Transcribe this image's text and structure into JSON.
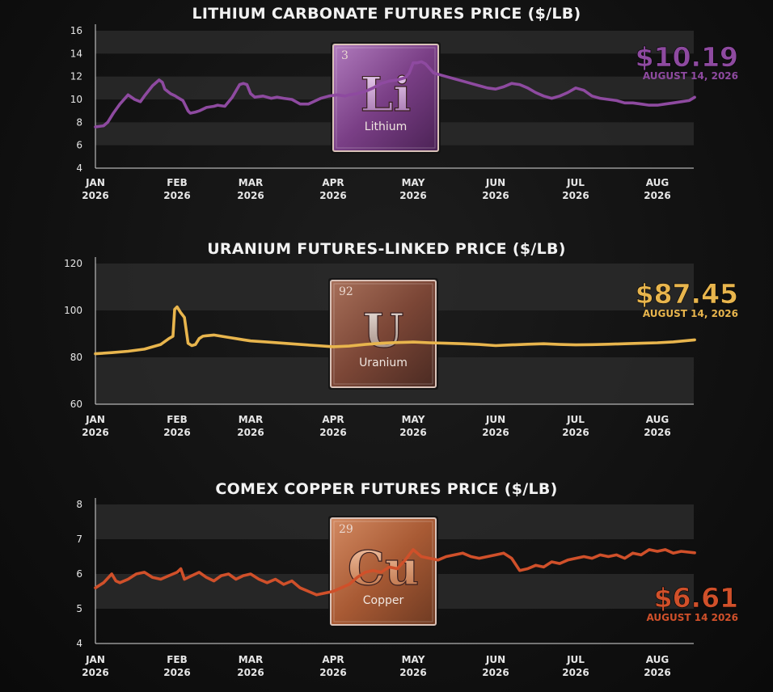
{
  "x_ticks": [
    "JAN 2026",
    "FEB 2026",
    "MAR 2026",
    "APR 2026",
    "MAY 2026",
    "JUN 2026",
    "JUL 2026",
    "AUG 2026"
  ],
  "chart_data": [
    {
      "type": "line",
      "title": "LITHIUM CARBONATE FUTURES PRICE ($/LB)",
      "ylim": [
        4,
        16
      ],
      "yticks": [
        4,
        6,
        8,
        10,
        12,
        14,
        16
      ],
      "grid": "alternating horizontal bands",
      "color": "#8e4aa0",
      "callout": {
        "value": "$10.19",
        "date": "AUGUST 14, 2026",
        "color": "#8e4aa0"
      },
      "element": {
        "number": "3",
        "symbol": "Li",
        "name": "Lithium"
      },
      "series": [
        {
          "x": [
            0.0,
            0.1,
            0.15,
            0.22,
            0.3,
            0.4,
            0.48,
            0.55,
            0.6,
            0.7,
            0.78,
            0.82,
            0.85,
            0.92,
            0.98,
            1.0,
            1.08,
            1.15,
            1.18,
            1.25,
            1.3,
            1.4,
            1.5,
            1.55,
            1.65,
            1.75,
            1.85,
            1.9,
            1.95,
            2.0,
            2.05,
            2.15,
            2.25,
            2.32,
            2.4,
            2.5,
            2.55,
            2.6,
            2.7,
            2.85,
            2.95,
            3.05,
            3.15,
            3.2,
            3.3,
            3.4,
            3.5,
            3.6,
            3.7,
            3.8,
            3.9,
            3.95,
            4.0,
            4.05,
            4.1,
            4.15,
            4.2,
            4.25,
            4.3,
            4.4,
            4.5,
            4.6,
            4.7,
            4.8,
            4.9,
            5.0,
            5.1,
            5.2,
            5.3,
            5.4,
            5.5,
            5.6,
            5.7,
            5.8,
            5.9,
            6.0,
            6.1,
            6.2,
            6.3,
            6.4,
            6.5,
            6.6,
            6.7,
            6.8,
            6.9,
            7.0,
            7.1,
            7.2,
            7.3,
            7.4,
            7.47
          ],
          "y": [
            7.6,
            7.7,
            8.0,
            8.8,
            9.6,
            10.4,
            10.0,
            9.8,
            10.3,
            11.2,
            11.7,
            11.5,
            10.9,
            10.5,
            10.3,
            10.2,
            9.9,
            9.0,
            8.8,
            8.9,
            9.0,
            9.3,
            9.4,
            9.5,
            9.4,
            10.2,
            11.3,
            11.4,
            11.3,
            10.5,
            10.2,
            10.3,
            10.1,
            10.2,
            10.1,
            10.0,
            9.8,
            9.6,
            9.6,
            10.1,
            10.3,
            10.4,
            10.3,
            10.4,
            10.5,
            10.7,
            11.0,
            11.4,
            11.6,
            11.7,
            11.9,
            12.3,
            13.2,
            13.2,
            13.3,
            13.1,
            12.7,
            12.3,
            12.2,
            12.0,
            11.8,
            11.6,
            11.4,
            11.2,
            11.0,
            10.9,
            11.1,
            11.4,
            11.3,
            11.0,
            10.6,
            10.3,
            10.1,
            10.3,
            10.6,
            11.0,
            10.8,
            10.3,
            10.1,
            10.0,
            9.9,
            9.7,
            9.7,
            9.6,
            9.5,
            9.5,
            9.6,
            9.7,
            9.8,
            9.9,
            10.19
          ]
        }
      ]
    },
    {
      "type": "line",
      "title": "URANIUM FUTURES-LINKED PRICE ($/LB)",
      "ylim": [
        60,
        120
      ],
      "yticks": [
        60,
        80,
        100,
        120
      ],
      "grid": "alternating horizontal bands",
      "color": "#e8b54d",
      "callout": {
        "value": "$87.45",
        "date": "AUGUST 14, 2026",
        "color": "#e8b54d"
      },
      "element": {
        "number": "92",
        "symbol": "U",
        "name": "Uranium"
      },
      "series": [
        {
          "x": [
            0.0,
            0.2,
            0.4,
            0.6,
            0.8,
            0.9,
            0.95,
            0.97,
            1.0,
            1.05,
            1.1,
            1.15,
            1.2,
            1.25,
            1.3,
            1.35,
            1.4,
            1.5,
            1.6,
            1.7,
            1.8,
            1.9,
            2.0,
            2.2,
            2.4,
            2.6,
            2.8,
            3.0,
            3.2,
            3.4,
            3.6,
            3.8,
            4.0,
            4.2,
            4.4,
            4.6,
            4.8,
            5.0,
            5.2,
            5.4,
            5.6,
            5.8,
            6.0,
            6.2,
            6.4,
            6.6,
            6.8,
            7.0,
            7.2,
            7.47
          ],
          "y": [
            81.5,
            82.0,
            82.6,
            83.5,
            85.5,
            88.0,
            89.0,
            100.5,
            101.5,
            99.0,
            97.0,
            86.0,
            85.0,
            85.5,
            88.0,
            89.0,
            89.2,
            89.5,
            89.0,
            88.5,
            88.0,
            87.5,
            87.0,
            86.5,
            86.0,
            85.5,
            85.0,
            84.5,
            84.8,
            85.5,
            86.0,
            86.3,
            86.5,
            86.2,
            86.0,
            85.8,
            85.5,
            85.0,
            85.3,
            85.6,
            85.8,
            85.5,
            85.3,
            85.4,
            85.6,
            85.8,
            86.0,
            86.2,
            86.6,
            87.45
          ]
        }
      ]
    },
    {
      "type": "line",
      "title": "COMEX COPPER FUTURES PRICE ($/LB)",
      "ylim": [
        4,
        8
      ],
      "yticks": [
        4,
        5,
        6,
        7,
        8
      ],
      "grid": "alternating horizontal bands",
      "color": "#d0502a",
      "callout": {
        "value": "$6.61",
        "date": "AUGUST 14 2026",
        "color": "#d0502a"
      },
      "element": {
        "number": "29",
        "symbol": "Cu",
        "name": "Copper"
      },
      "series": [
        {
          "x": [
            0.0,
            0.1,
            0.2,
            0.25,
            0.3,
            0.4,
            0.5,
            0.6,
            0.7,
            0.8,
            0.9,
            1.0,
            1.05,
            1.1,
            1.2,
            1.3,
            1.4,
            1.5,
            1.6,
            1.7,
            1.8,
            1.9,
            2.0,
            2.1,
            2.2,
            2.3,
            2.4,
            2.5,
            2.6,
            2.7,
            2.8,
            2.9,
            3.0,
            3.1,
            3.2,
            3.3,
            3.4,
            3.5,
            3.6,
            3.7,
            3.8,
            3.9,
            4.0,
            4.1,
            4.2,
            4.3,
            4.4,
            4.5,
            4.6,
            4.7,
            4.8,
            4.9,
            5.0,
            5.1,
            5.2,
            5.3,
            5.4,
            5.5,
            5.6,
            5.7,
            5.8,
            5.9,
            6.0,
            6.1,
            6.2,
            6.3,
            6.4,
            6.5,
            6.6,
            6.7,
            6.8,
            6.9,
            7.0,
            7.1,
            7.2,
            7.3,
            7.47
          ],
          "y": [
            5.6,
            5.75,
            6.0,
            5.8,
            5.75,
            5.85,
            6.0,
            6.05,
            5.9,
            5.85,
            5.95,
            6.05,
            6.15,
            5.85,
            5.95,
            6.05,
            5.9,
            5.8,
            5.95,
            6.0,
            5.85,
            5.95,
            6.0,
            5.85,
            5.75,
            5.85,
            5.7,
            5.8,
            5.6,
            5.5,
            5.4,
            5.45,
            5.5,
            5.6,
            5.7,
            5.9,
            6.05,
            6.1,
            6.05,
            6.2,
            6.15,
            6.4,
            6.7,
            6.5,
            6.45,
            6.4,
            6.5,
            6.55,
            6.6,
            6.5,
            6.45,
            6.5,
            6.55,
            6.6,
            6.45,
            6.1,
            6.15,
            6.25,
            6.2,
            6.35,
            6.3,
            6.4,
            6.45,
            6.5,
            6.45,
            6.55,
            6.5,
            6.55,
            6.45,
            6.6,
            6.55,
            6.7,
            6.65,
            6.7,
            6.6,
            6.65,
            6.61
          ]
        }
      ]
    }
  ]
}
